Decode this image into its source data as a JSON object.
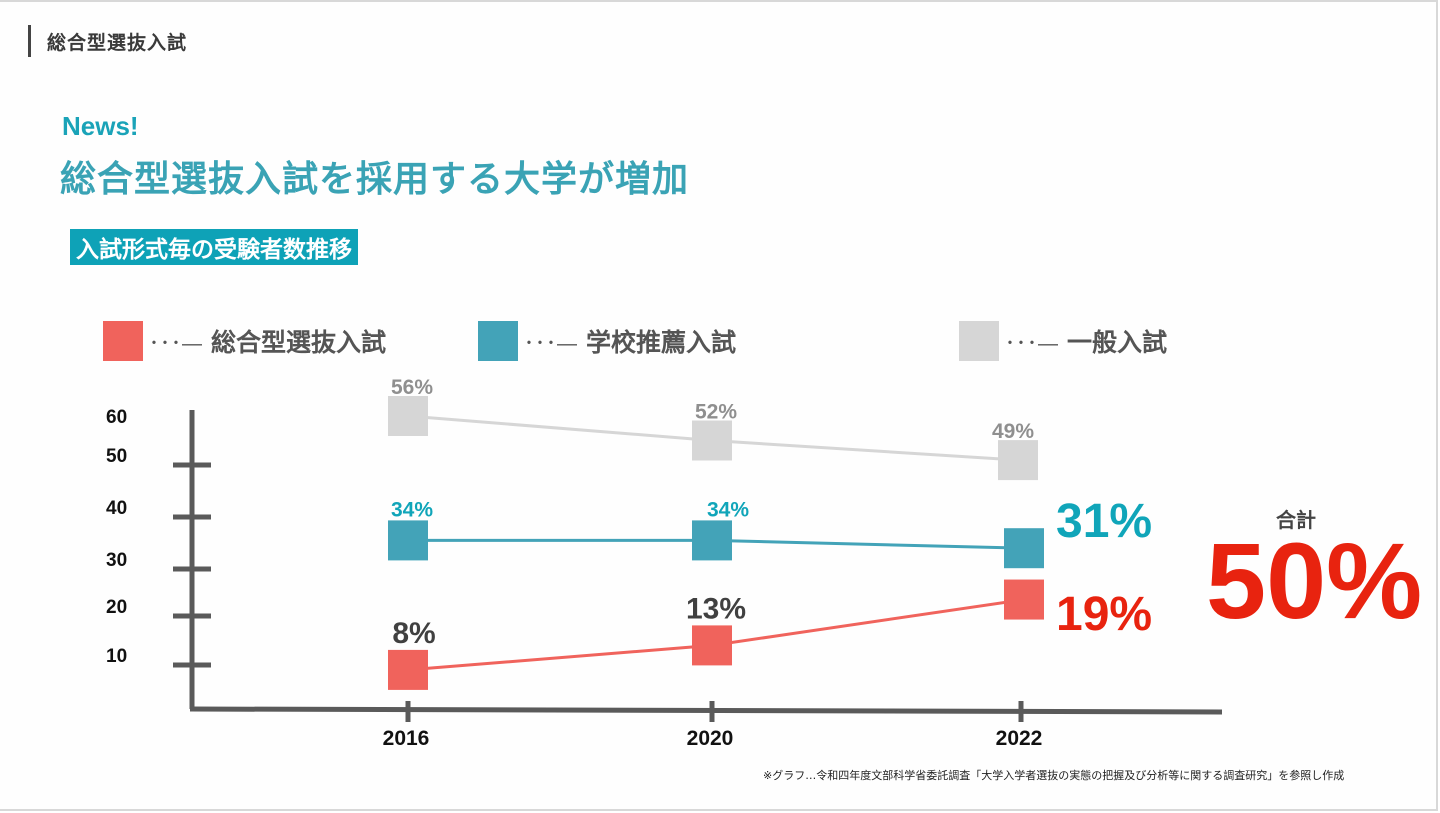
{
  "section": {
    "title": "総合型選抜入試"
  },
  "news_label": "News!",
  "headline": "総合型選抜入試を採用する大学が増加",
  "subtitle": "入試形式毎の受験者数推移",
  "legend": [
    {
      "label": "総合型選抜入試",
      "dash": "･･･―",
      "color": "#f0635c"
    },
    {
      "label": "学校推薦入試",
      "dash": "･･･―",
      "color": "#43a3b8"
    },
    {
      "label": "一般入試",
      "dash": "･･･―",
      "color": "#d6d6d6"
    }
  ],
  "total": {
    "label": "合計",
    "value": "50%"
  },
  "footnote": "※グラフ…令和四年度文部科学省委託調査「大学入学者選抜の実態の把握及び分析等に関する調査研究」を参照し作成",
  "chart_data": {
    "type": "line",
    "title": "入試形式毎の受験者数推移",
    "xlabel": "",
    "ylabel": "",
    "categories": [
      "2016",
      "2020",
      "2022"
    ],
    "y_ticks": [
      10,
      20,
      30,
      40,
      50,
      60
    ],
    "ylim": [
      0,
      60
    ],
    "grid": false,
    "legend_position": "top",
    "series": [
      {
        "name": "一般入試",
        "color": "#d6d6d6",
        "label_color": "#8f8f8f",
        "values": [
          56,
          52,
          49
        ],
        "labels": [
          "56%",
          "52%",
          "49%"
        ]
      },
      {
        "name": "学校推薦入試",
        "color": "#43a3b8",
        "label_color": "#10a5b9",
        "values": [
          34,
          34,
          31
        ],
        "labels": [
          "34%",
          "34%",
          "31%"
        ]
      },
      {
        "name": "総合型選抜入試",
        "color": "#f0635c",
        "label_color": "#404040",
        "values": [
          8,
          13,
          19
        ],
        "labels": [
          "8%",
          "13%",
          "19%"
        ],
        "last_label_color": "#e8230f"
      }
    ],
    "annotation": {
      "label": "合計",
      "value": "50%",
      "color": "#e8230f"
    }
  }
}
